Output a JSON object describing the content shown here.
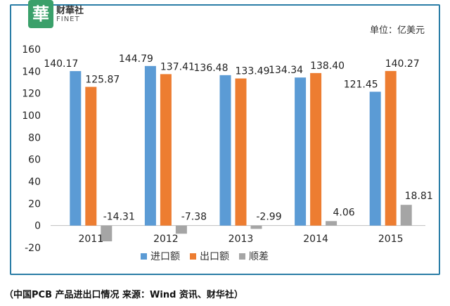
{
  "logo": {
    "seal_char": "華",
    "name": "财華社",
    "en": "FINET"
  },
  "unit_label": "单位：亿美元",
  "caption": "（中国PCB 产品进出口情况   来源：Wind 资讯、财华社）",
  "colors": {
    "import": "#5b9bd5",
    "export": "#ed7d31",
    "surplus": "#a5a5a5"
  },
  "chart_data": {
    "type": "bar",
    "categories": [
      "2011",
      "2012",
      "2013",
      "2014",
      "2015"
    ],
    "series": [
      {
        "name": "进口额",
        "values": [
          140.17,
          144.79,
          136.48,
          134.34,
          121.45
        ]
      },
      {
        "name": "出口额",
        "values": [
          125.87,
          137.41,
          133.49,
          138.4,
          140.27
        ]
      },
      {
        "name": "顺差",
        "values": [
          -14.31,
          -7.38,
          -2.99,
          4.06,
          18.81
        ]
      }
    ],
    "data_labels": [
      [
        "140.17",
        "144.79",
        "136.48",
        "134.34",
        "121.45"
      ],
      [
        "125.87",
        "137.41",
        "133.49",
        "138.40",
        "140.27"
      ],
      [
        "-14.31",
        "-7.38",
        "-2.99",
        "4.06",
        "18.81"
      ]
    ],
    "yticks": [
      "-20",
      "0",
      "20",
      "40",
      "60",
      "80",
      "100",
      "120",
      "140",
      "160"
    ],
    "ylim": [
      -20,
      160
    ],
    "legend_position": "bottom",
    "grid": false
  }
}
